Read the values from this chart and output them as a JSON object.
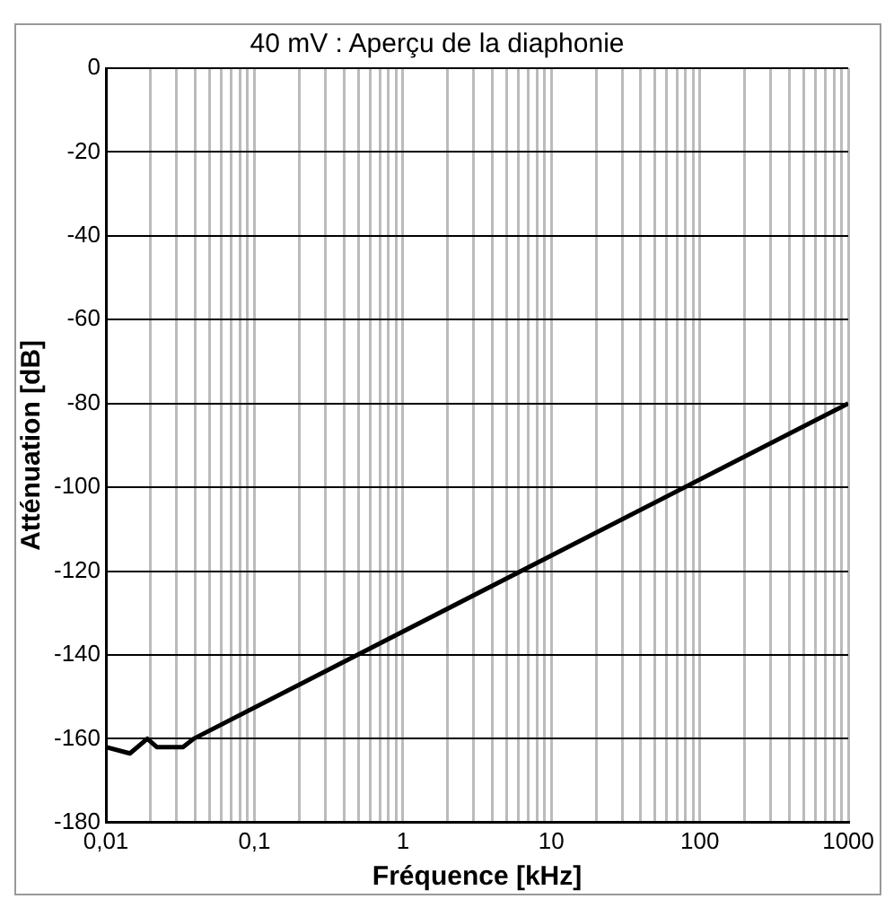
{
  "chart_data": {
    "type": "line",
    "title": "40 mV : Aperçu de la diaphonie",
    "xlabel": "Fréquence [kHz]",
    "ylabel": "Atténuation [dB]",
    "log": "x",
    "grid": true,
    "marker": "none",
    "line_style": "solid",
    "x": [
      0.01,
      0.0145,
      0.019,
      0.022,
      0.033,
      0.039,
      1000
    ],
    "series": [
      {
        "color": "#000000",
        "values": [
          -162,
          -163.5,
          -160,
          -162,
          -162,
          -160,
          -80
        ]
      }
    ],
    "xlim": [
      0.01,
      1000
    ],
    "ylim": [
      -180,
      0
    ],
    "xticks": [
      {
        "value": 0.01,
        "label": "0,01"
      },
      {
        "value": 0.02,
        "label": null
      },
      {
        "value": 0.03,
        "label": null
      },
      {
        "value": 0.04,
        "label": null
      },
      {
        "value": 0.05,
        "label": null
      },
      {
        "value": 0.06,
        "label": null
      },
      {
        "value": 0.07,
        "label": null
      },
      {
        "value": 0.08,
        "label": null
      },
      {
        "value": 0.09,
        "label": null
      },
      {
        "value": 0.1,
        "label": "0,1"
      },
      {
        "value": 0.2,
        "label": null
      },
      {
        "value": 0.3,
        "label": null
      },
      {
        "value": 0.4,
        "label": null
      },
      {
        "value": 0.5,
        "label": null
      },
      {
        "value": 0.6,
        "label": null
      },
      {
        "value": 0.7,
        "label": null
      },
      {
        "value": 0.8,
        "label": null
      },
      {
        "value": 0.9,
        "label": null
      },
      1,
      {
        "value": 2,
        "label": null
      },
      {
        "value": 3,
        "label": null
      },
      {
        "value": 4,
        "label": null
      },
      {
        "value": 5,
        "label": null
      },
      {
        "value": 6,
        "label": null
      },
      {
        "value": 7,
        "label": null
      },
      {
        "value": 8,
        "label": null
      },
      {
        "value": 9,
        "label": null
      },
      10,
      {
        "value": 20,
        "label": null
      },
      {
        "value": 30,
        "label": null
      },
      {
        "value": 40,
        "label": null
      },
      {
        "value": 50,
        "label": null
      },
      {
        "value": 60,
        "label": null
      },
      {
        "value": 70,
        "label": null
      },
      {
        "value": 80,
        "label": null
      },
      {
        "value": 90,
        "label": null
      },
      100,
      {
        "value": 200,
        "label": null
      },
      {
        "value": 300,
        "label": null
      },
      {
        "value": 400,
        "label": null
      },
      {
        "value": 500,
        "label": null
      },
      {
        "value": 600,
        "label": null
      },
      {
        "value": 700,
        "label": null
      },
      {
        "value": 800,
        "label": null
      },
      {
        "value": 900,
        "label": null
      },
      1000
    ],
    "yticks": [
      0,
      -20,
      -40,
      -60,
      -80,
      -100,
      -120,
      -140,
      -160,
      -180
    ]
  }
}
